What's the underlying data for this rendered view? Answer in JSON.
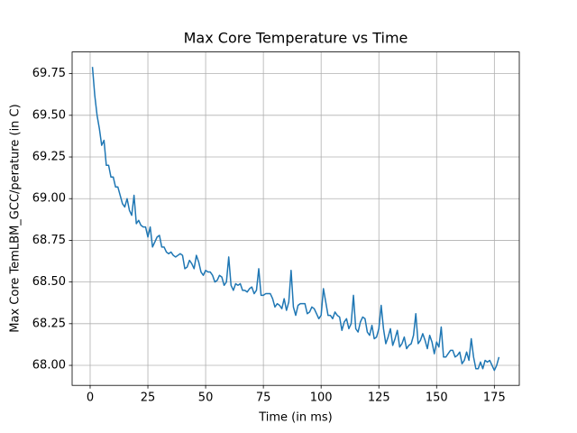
{
  "chart_data": {
    "type": "line",
    "title": "Max Core Temperature vs Time",
    "x_label": "Time (in ms)",
    "y_label": "Max Core TemLBM_GCC/perature (in C)",
    "color": "#1f77b4",
    "grid": true,
    "xlim": [
      -7.8,
      185.8
    ],
    "ylim": [
      67.88,
      69.88
    ],
    "xticks": [
      0,
      25,
      50,
      75,
      100,
      125,
      150,
      175
    ],
    "yticks": [
      {
        "value": 68,
        "label": "68.00"
      },
      68.25,
      {
        "value": 68.5,
        "label": "68.50"
      },
      {
        "value": 68.75,
        "label": "68.75"
      },
      {
        "value": 69,
        "label": "69.00"
      },
      {
        "value": 69.25,
        "label": "69.25"
      },
      {
        "value": 69.5,
        "label": "69.50"
      },
      69.75
    ],
    "x": [
      1,
      2,
      3,
      4,
      5,
      6,
      7,
      8,
      9,
      10,
      11,
      12,
      13,
      14,
      15,
      16,
      17,
      18,
      19,
      20,
      21,
      22,
      23,
      24,
      25,
      26,
      27,
      28,
      29,
      30,
      31,
      32,
      33,
      34,
      35,
      36,
      37,
      38,
      39,
      40,
      41,
      42,
      43,
      44,
      45,
      46,
      47,
      48,
      49,
      50,
      51,
      52,
      53,
      54,
      55,
      56,
      57,
      58,
      59,
      60,
      61,
      62,
      63,
      64,
      65,
      66,
      67,
      68,
      69,
      70,
      71,
      72,
      73,
      74,
      75,
      76,
      77,
      78,
      79,
      80,
      81,
      82,
      83,
      84,
      85,
      86,
      87,
      88,
      89,
      90,
      91,
      92,
      93,
      94,
      95,
      96,
      97,
      98,
      99,
      100,
      101,
      102,
      103,
      104,
      105,
      106,
      107,
      108,
      109,
      110,
      111,
      112,
      113,
      114,
      115,
      116,
      117,
      118,
      119,
      120,
      121,
      122,
      123,
      124,
      125,
      126,
      127,
      128,
      129,
      130,
      131,
      132,
      133,
      134,
      135,
      136,
      137,
      138,
      139,
      140,
      141,
      142,
      143,
      144,
      145,
      146,
      147,
      148,
      149,
      150,
      151,
      152,
      153,
      154,
      155,
      156,
      157,
      158,
      159,
      160,
      161,
      162,
      163,
      164,
      165,
      166,
      167,
      168,
      169,
      170,
      171,
      172,
      173,
      174,
      175,
      176,
      177
    ],
    "values": [
      69.79,
      69.62,
      69.5,
      69.42,
      69.32,
      69.35,
      69.2,
      69.2,
      69.13,
      69.13,
      69.07,
      69.07,
      69.02,
      68.97,
      68.95,
      69.0,
      68.93,
      68.9,
      69.02,
      68.85,
      68.87,
      68.84,
      68.83,
      68.83,
      68.77,
      68.83,
      68.71,
      68.74,
      68.77,
      68.78,
      68.71,
      68.71,
      68.68,
      68.67,
      68.68,
      68.66,
      68.65,
      68.66,
      68.67,
      68.66,
      68.58,
      68.59,
      68.63,
      68.61,
      68.58,
      68.66,
      68.62,
      68.56,
      68.54,
      68.57,
      68.56,
      68.56,
      68.54,
      68.5,
      68.51,
      68.54,
      68.53,
      68.48,
      68.5,
      68.65,
      68.48,
      68.45,
      68.49,
      68.48,
      68.49,
      68.45,
      68.45,
      68.44,
      68.46,
      68.47,
      68.43,
      68.45,
      68.58,
      68.42,
      68.42,
      68.43,
      68.43,
      68.43,
      68.4,
      68.35,
      68.37,
      68.36,
      68.34,
      68.4,
      68.33,
      68.38,
      68.57,
      68.35,
      68.3,
      68.36,
      68.37,
      68.37,
      68.37,
      68.31,
      68.32,
      68.35,
      68.34,
      68.31,
      68.28,
      68.3,
      68.46,
      68.38,
      68.3,
      68.3,
      68.28,
      68.32,
      68.3,
      68.29,
      68.21,
      68.26,
      68.28,
      68.22,
      68.25,
      68.42,
      68.22,
      68.2,
      68.26,
      68.29,
      68.28,
      68.2,
      68.18,
      68.24,
      68.16,
      68.17,
      68.22,
      68.36,
      68.22,
      68.13,
      68.17,
      68.22,
      68.12,
      68.16,
      68.21,
      68.11,
      68.13,
      68.17,
      68.1,
      68.12,
      68.13,
      68.18,
      68.31,
      68.13,
      68.15,
      68.19,
      68.15,
      68.1,
      68.18,
      68.14,
      68.07,
      68.14,
      68.11,
      68.23,
      68.05,
      68.05,
      68.07,
      68.09,
      68.09,
      68.05,
      68.06,
      68.08,
      68.01,
      68.03,
      68.08,
      68.03,
      68.16,
      68.05,
      67.98,
      67.98,
      68.02,
      67.98,
      68.03,
      68.02,
      68.03,
      68.0,
      67.97,
      68.0,
      68.05
    ]
  }
}
